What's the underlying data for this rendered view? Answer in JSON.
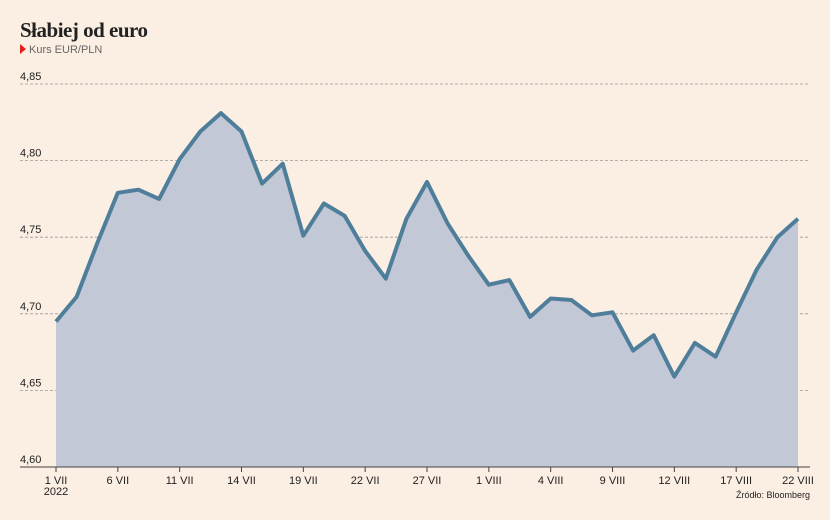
{
  "chart_data": {
    "type": "area",
    "title": "Słabiej od euro",
    "subtitle": "Kurs EUR/PLN",
    "source": "Źródło: Bloomberg",
    "year_label": "2022",
    "categories": [
      "1 VII",
      null,
      null,
      "6 VII",
      null,
      null,
      "11 VII",
      null,
      null,
      "14 VII",
      null,
      null,
      "19 VII",
      null,
      null,
      "22 VII",
      null,
      null,
      "27 VII",
      null,
      null,
      "1 VIII",
      null,
      null,
      "4 VIII",
      null,
      null,
      "9 VIII",
      null,
      null,
      "12 VIII",
      null,
      null,
      "17 VIII",
      null,
      null,
      "22 VIII"
    ],
    "values": [
      4.695,
      4.711,
      4.746,
      4.779,
      4.781,
      4.775,
      4.801,
      4.819,
      4.831,
      4.819,
      4.785,
      4.798,
      4.751,
      4.772,
      4.764,
      4.741,
      4.723,
      4.762,
      4.786,
      4.759,
      4.738,
      4.719,
      4.722,
      4.698,
      4.71,
      4.709,
      4.699,
      4.701,
      4.676,
      4.686,
      4.659,
      4.681,
      4.672,
      4.701,
      4.729,
      4.75,
      4.762
    ],
    "color": "#4f7e9b",
    "area_color": "#c2c8d6",
    "marker_color": "#e0201b",
    "ylim": [
      4.6,
      4.85
    ],
    "yticks": [
      {
        "value": 4.6,
        "label": "4,60"
      },
      {
        "value": 4.65,
        "label": "4,65"
      },
      {
        "value": 4.7,
        "label": "4,70"
      },
      {
        "value": 4.75,
        "label": "4,75"
      },
      {
        "value": 4.8,
        "label": "4,80"
      },
      {
        "value": 4.85,
        "label": "4,85"
      }
    ],
    "grid": true
  }
}
